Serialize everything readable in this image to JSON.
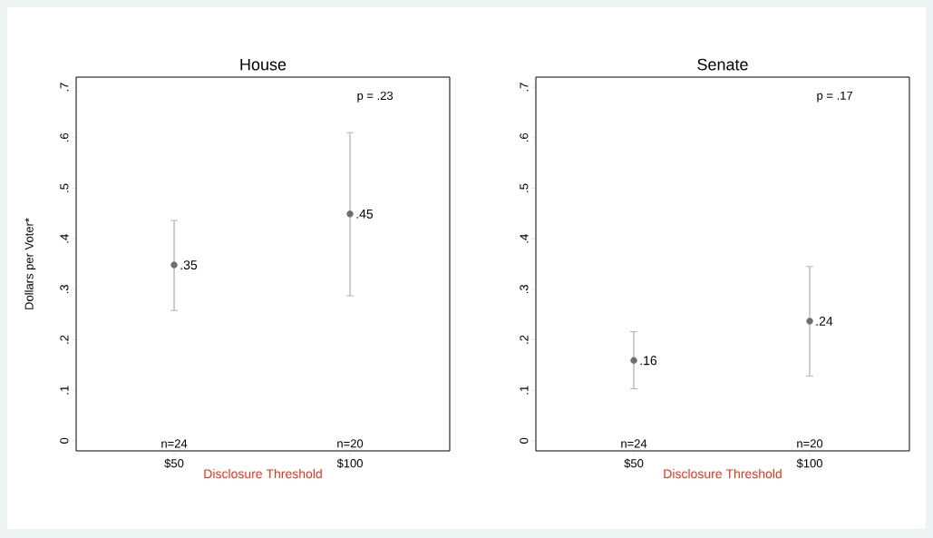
{
  "chart_data": [
    {
      "type": "scatter",
      "title": "House",
      "xlabel": "Disclosure Threshold",
      "ylabel": "Dollars per Voter*",
      "categories": [
        "$50",
        "$100"
      ],
      "values": [
        0.348,
        0.449
      ],
      "errors": [
        [
          0.258,
          0.436
        ],
        [
          0.287,
          0.61
        ]
      ],
      "value_labels": [
        ".35",
        ".45"
      ],
      "color": "#6e6e6e",
      "marker": "circle",
      "ylim": [
        -0.02,
        0.72
      ],
      "yticks": [
        0,
        {
          "value": 0.1,
          "label": ".1"
        },
        {
          "value": 0.2,
          "label": ".2"
        },
        {
          "value": 0.3,
          "label": ".3"
        },
        {
          "value": 0.4,
          "label": ".4"
        },
        {
          "value": 0.5,
          "label": ".5"
        },
        {
          "value": 0.6,
          "label": ".6"
        },
        {
          "value": 0.7,
          "label": ".7"
        }
      ],
      "annotations": [
        "p = .23",
        "n=24",
        "n=20"
      ]
    },
    {
      "type": "scatter",
      "title": "Senate",
      "xlabel": "Disclosure Threshold",
      "categories": [
        "$50",
        "$100"
      ],
      "values": [
        0.159,
        0.237
      ],
      "errors": [
        [
          0.103,
          0.216
        ],
        [
          0.128,
          0.345
        ]
      ],
      "value_labels": [
        ".16",
        ".24"
      ],
      "color": "#6e6e6e",
      "marker": "circle",
      "ylim": [
        -0.02,
        0.72
      ],
      "yticks": [
        0,
        {
          "value": 0.1,
          "label": ".1"
        },
        {
          "value": 0.2,
          "label": ".2"
        },
        {
          "value": 0.3,
          "label": ".3"
        },
        {
          "value": 0.4,
          "label": ".4"
        },
        {
          "value": 0.5,
          "label": ".5"
        },
        {
          "value": 0.6,
          "label": ".6"
        },
        {
          "value": 0.7,
          "label": ".7"
        }
      ],
      "annotations": [
        "p = .17",
        "n=24",
        "n=20"
      ]
    }
  ]
}
